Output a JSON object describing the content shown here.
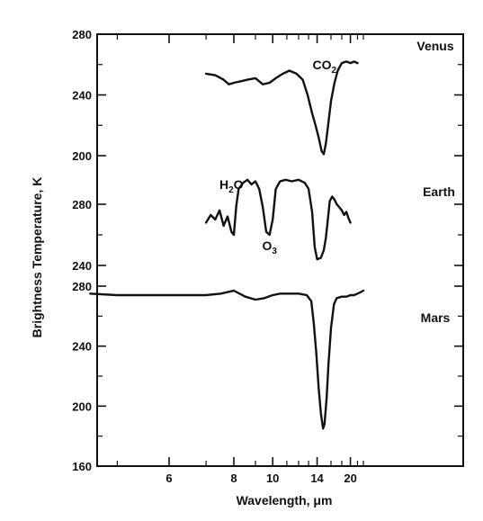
{
  "chart_data": {
    "type": "line",
    "xlabel": "Wavelength, μm",
    "ylabel": "Brightness Temperature, K",
    "x_scale": "reciprocal",
    "x_ticks": [
      6,
      8,
      10,
      14,
      20
    ],
    "xlim": [
      4.5,
      25
    ],
    "panels": [
      {
        "name": "Venus",
        "ylim": [
          200,
          280
        ],
        "y_ticks": [
          200,
          240,
          280
        ],
        "annotations": [
          {
            "label": "CO",
            "sub": "2",
            "x": 15.0,
            "y": 257
          }
        ],
        "points": [
          [
            7.0,
            254
          ],
          [
            7.3,
            253
          ],
          [
            7.6,
            250
          ],
          [
            7.8,
            247
          ],
          [
            8.0,
            248
          ],
          [
            8.3,
            249
          ],
          [
            8.6,
            250
          ],
          [
            9.0,
            251
          ],
          [
            9.4,
            247
          ],
          [
            9.8,
            248
          ],
          [
            10.2,
            251
          ],
          [
            10.7,
            254
          ],
          [
            11.2,
            256
          ],
          [
            11.8,
            254
          ],
          [
            12.4,
            250
          ],
          [
            12.9,
            240
          ],
          [
            13.4,
            228
          ],
          [
            13.8,
            220
          ],
          [
            14.2,
            212
          ],
          [
            14.6,
            203
          ],
          [
            14.9,
            201
          ],
          [
            15.2,
            208
          ],
          [
            15.6,
            222
          ],
          [
            16.0,
            236
          ],
          [
            16.6,
            248
          ],
          [
            17.2,
            256
          ],
          [
            18.0,
            261
          ],
          [
            19.0,
            262
          ],
          [
            20.0,
            261
          ],
          [
            21.0,
            262
          ],
          [
            22.0,
            261
          ]
        ]
      },
      {
        "name": "Earth",
        "ylim": [
          240,
          300
        ],
        "y_ticks": [
          240,
          280
        ],
        "annotations": [
          {
            "label": "H",
            "sub": "2",
            "tail": "O",
            "x": 7.9,
            "y": 290
          },
          {
            "label": "O",
            "sub": "3",
            "x": 9.8,
            "y": 250
          }
        ],
        "points": [
          [
            7.0,
            268
          ],
          [
            7.15,
            273
          ],
          [
            7.3,
            270
          ],
          [
            7.45,
            276
          ],
          [
            7.6,
            266
          ],
          [
            7.75,
            272
          ],
          [
            7.9,
            262
          ],
          [
            8.0,
            260
          ],
          [
            8.1,
            279
          ],
          [
            8.2,
            290
          ],
          [
            8.4,
            294
          ],
          [
            8.6,
            296
          ],
          [
            8.8,
            293
          ],
          [
            9.0,
            295
          ],
          [
            9.2,
            290
          ],
          [
            9.4,
            278
          ],
          [
            9.6,
            262
          ],
          [
            9.8,
            260
          ],
          [
            10.0,
            270
          ],
          [
            10.2,
            290
          ],
          [
            10.5,
            295
          ],
          [
            10.9,
            296
          ],
          [
            11.4,
            295
          ],
          [
            12.0,
            296
          ],
          [
            12.6,
            294
          ],
          [
            13.0,
            290
          ],
          [
            13.4,
            275
          ],
          [
            13.7,
            252
          ],
          [
            14.0,
            244
          ],
          [
            14.5,
            245
          ],
          [
            14.9,
            250
          ],
          [
            15.2,
            258
          ],
          [
            15.5,
            270
          ],
          [
            15.8,
            282
          ],
          [
            16.2,
            285
          ],
          [
            16.6,
            283
          ],
          [
            17.0,
            280
          ],
          [
            17.5,
            278
          ],
          [
            18.0,
            276
          ],
          [
            18.5,
            273
          ],
          [
            19.0,
            275
          ],
          [
            19.5,
            271
          ],
          [
            20.0,
            268
          ]
        ]
      },
      {
        "name": "Mars",
        "ylim": [
          160,
          280
        ],
        "y_ticks": [
          160,
          200,
          240,
          280
        ],
        "annotations": [],
        "points": [
          [
            4.6,
            275
          ],
          [
            5.0,
            274
          ],
          [
            5.5,
            274
          ],
          [
            6.0,
            274
          ],
          [
            6.5,
            274
          ],
          [
            7.0,
            274
          ],
          [
            7.5,
            275
          ],
          [
            8.0,
            277
          ],
          [
            8.5,
            273
          ],
          [
            9.0,
            271
          ],
          [
            9.5,
            272
          ],
          [
            10.0,
            274
          ],
          [
            10.5,
            275
          ],
          [
            11.0,
            275
          ],
          [
            12.0,
            275
          ],
          [
            12.8,
            274
          ],
          [
            13.3,
            270
          ],
          [
            13.6,
            255
          ],
          [
            13.9,
            235
          ],
          [
            14.2,
            212
          ],
          [
            14.5,
            195
          ],
          [
            14.8,
            185
          ],
          [
            15.0,
            188
          ],
          [
            15.3,
            205
          ],
          [
            15.6,
            228
          ],
          [
            16.0,
            252
          ],
          [
            16.5,
            268
          ],
          [
            17.0,
            272
          ],
          [
            18.0,
            273
          ],
          [
            19.0,
            273
          ],
          [
            20.0,
            274
          ],
          [
            21.0,
            274
          ],
          [
            22.0,
            275
          ],
          [
            23.0,
            276
          ],
          [
            24.0,
            277
          ]
        ]
      }
    ]
  }
}
